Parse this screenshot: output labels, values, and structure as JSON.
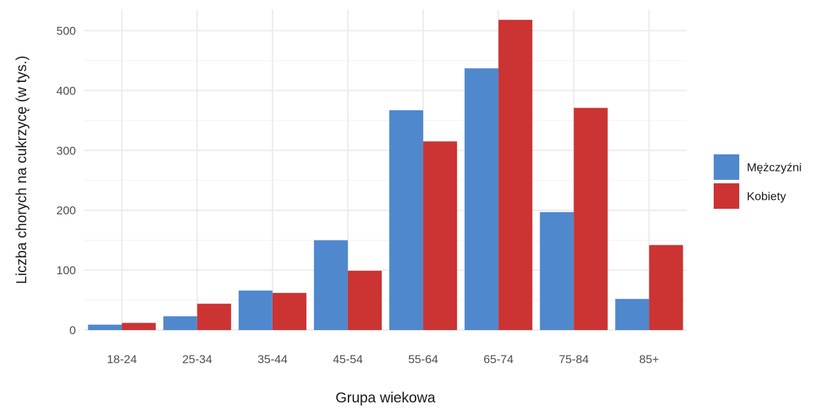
{
  "chart_data": {
    "type": "bar",
    "xlabel": "Grupa wiekowa",
    "ylabel": "Liczba chorych na cukrzycę (w tys.)",
    "categories": [
      "18-24",
      "25-34",
      "35-44",
      "45-54",
      "55-64",
      "65-74",
      "75-84",
      "85+"
    ],
    "series": [
      {
        "name": "Mężczyźni",
        "color": "#5088cd",
        "values": [
          9,
          23,
          66,
          150,
          367,
          437,
          197,
          52
        ]
      },
      {
        "name": "Kobiety",
        "color": "#cc3333",
        "values": [
          12,
          44,
          62,
          99,
          315,
          518,
          371,
          142
        ]
      }
    ],
    "yticks": [
      0,
      100,
      200,
      300,
      400,
      500
    ],
    "ylim": [
      0,
      535
    ],
    "grid": true,
    "legend": "right"
  }
}
